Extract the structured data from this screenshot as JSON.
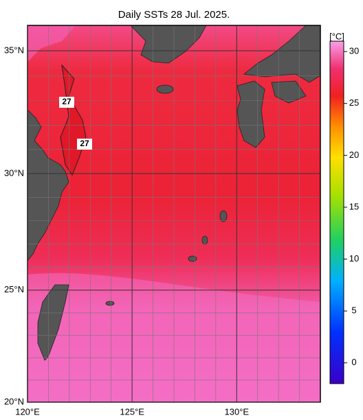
{
  "map": {
    "title": "Daily SSTs 28 Jul. 2025.",
    "lon_range": [
      120,
      134
    ],
    "lat_range": [
      20,
      36
    ],
    "lon_ticks": [
      {
        "value": 120,
        "label": "120°E"
      },
      {
        "value": 125,
        "label": "125°E"
      },
      {
        "value": 130,
        "label": "130°E"
      }
    ],
    "lat_ticks": [
      {
        "value": 20,
        "label": "20°N"
      },
      {
        "value": 25,
        "label": "25°N"
      },
      {
        "value": 30,
        "label": "30°N"
      },
      {
        "value": 35,
        "label": "35°N"
      }
    ],
    "colorbar": {
      "label": "[°C]",
      "range": [
        -2,
        31
      ],
      "ticks": [
        0,
        5,
        10,
        15,
        20,
        25,
        30
      ]
    },
    "contour_labels": [
      "27",
      "27"
    ]
  }
}
